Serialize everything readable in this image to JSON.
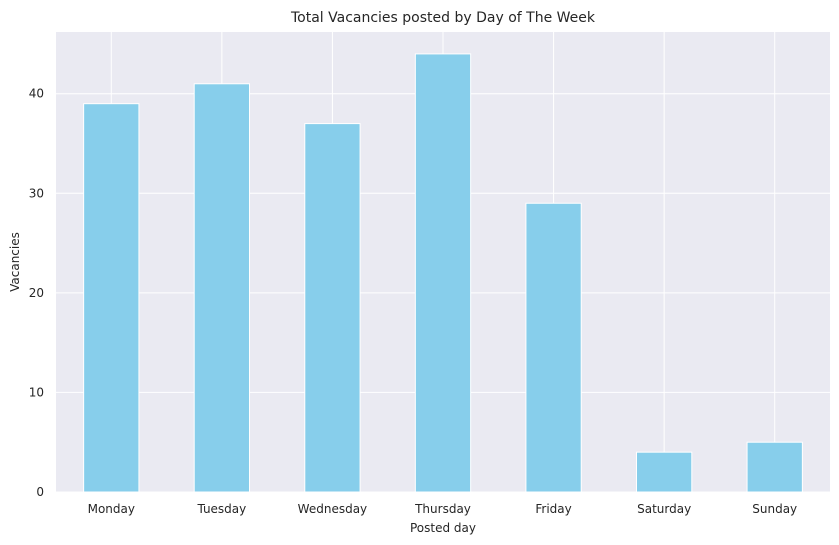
{
  "chart_data": {
    "type": "bar",
    "title": "Total Vacancies posted by Day of The Week",
    "xlabel": "Posted day",
    "ylabel": "Vacancies",
    "categories": [
      "Monday",
      "Tuesday",
      "Wednesday",
      "Thursday",
      "Friday",
      "Saturday",
      "Sunday"
    ],
    "values": [
      39,
      41,
      37,
      44,
      29,
      4,
      5
    ],
    "ylim": [
      0,
      46.2
    ],
    "yticks": [
      0,
      10,
      20,
      30,
      40
    ],
    "grid": true,
    "colors": {
      "bar": "#87CEEB",
      "plot_background": "#EAEAF2",
      "grid": "#FFFFFF",
      "bar_edge": "#FFFFFF"
    }
  }
}
